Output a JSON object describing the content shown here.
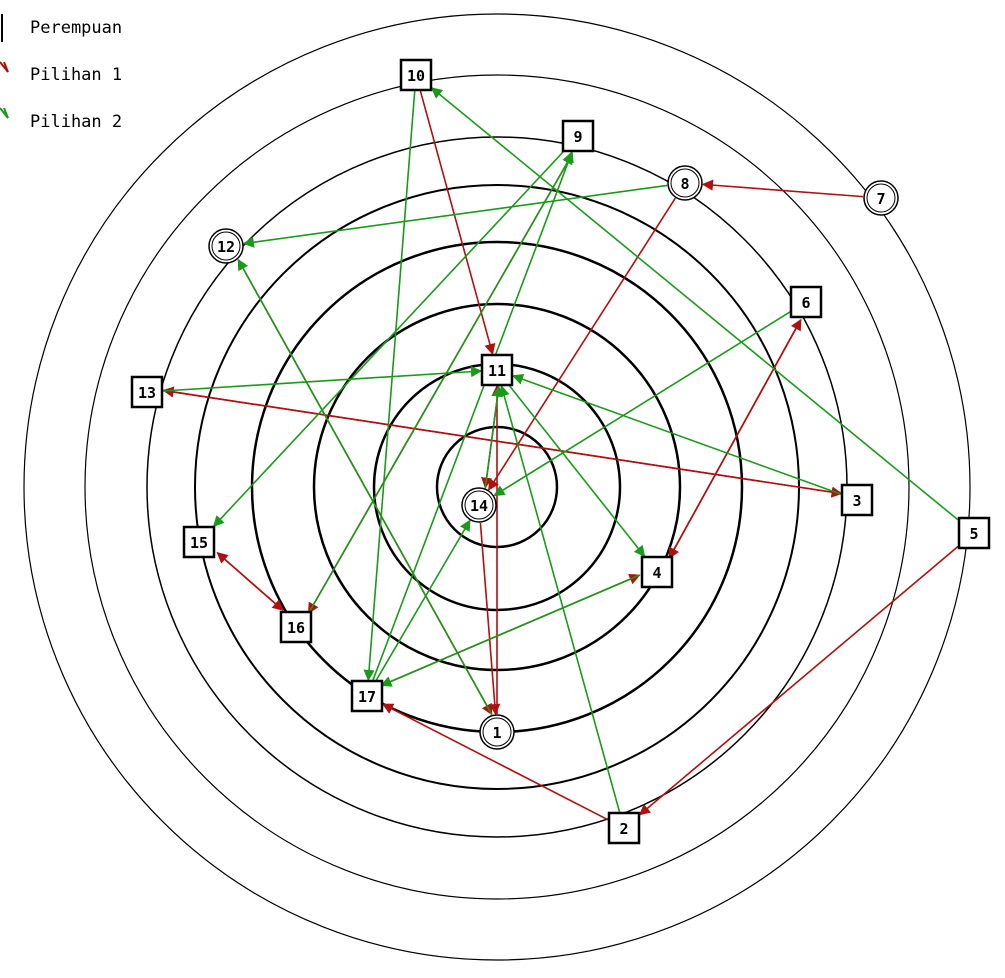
{
  "legend": {
    "female_label": "Perempuan",
    "choice1_label": "Pilihan 1",
    "choice2_label": "Pilihan 2"
  },
  "colors": {
    "ring": "#000000",
    "choice1": "#b01010",
    "choice2": "#1a9a1a",
    "node_fill": "#ffffff",
    "node_stroke": "#000000"
  },
  "nodes": [
    {
      "id": "1",
      "label": "1",
      "shape": "circle"
    },
    {
      "id": "2",
      "label": "2",
      "shape": "square"
    },
    {
      "id": "3",
      "label": "3",
      "shape": "square"
    },
    {
      "id": "4",
      "label": "4",
      "shape": "square"
    },
    {
      "id": "5",
      "label": "5",
      "shape": "square"
    },
    {
      "id": "6",
      "label": "6",
      "shape": "square"
    },
    {
      "id": "7",
      "label": "7",
      "shape": "circle"
    },
    {
      "id": "8",
      "label": "8",
      "shape": "circle"
    },
    {
      "id": "9",
      "label": "9",
      "shape": "square"
    },
    {
      "id": "10",
      "label": "10",
      "shape": "square"
    },
    {
      "id": "11",
      "label": "11",
      "shape": "square"
    },
    {
      "id": "12",
      "label": "12",
      "shape": "circle"
    },
    {
      "id": "13",
      "label": "13",
      "shape": "square"
    },
    {
      "id": "14",
      "label": "14",
      "shape": "circle"
    },
    {
      "id": "15",
      "label": "15",
      "shape": "square"
    },
    {
      "id": "16",
      "label": "16",
      "shape": "square"
    },
    {
      "id": "17",
      "label": "17",
      "shape": "square"
    }
  ],
  "edges": [
    {
      "from": "7",
      "to": "8",
      "choice": 1
    },
    {
      "from": "10",
      "to": "11",
      "choice": 1
    },
    {
      "from": "9",
      "to": "16",
      "choice": 1
    },
    {
      "from": "8",
      "to": "14",
      "choice": 1
    },
    {
      "from": "12",
      "to": "1",
      "choice": 1
    },
    {
      "from": "13",
      "to": "3",
      "choice": 1
    },
    {
      "from": "3",
      "to": "13",
      "choice": 1
    },
    {
      "from": "6",
      "to": "4",
      "choice": 1
    },
    {
      "from": "4",
      "to": "6",
      "choice": 1
    },
    {
      "from": "15",
      "to": "16",
      "choice": 1
    },
    {
      "from": "16",
      "to": "15",
      "choice": 1
    },
    {
      "from": "17",
      "to": "4",
      "choice": 1
    },
    {
      "from": "14",
      "to": "1",
      "choice": 1
    },
    {
      "from": "11",
      "to": "14",
      "choice": 1
    },
    {
      "from": "1",
      "to": "11",
      "choice": 1
    },
    {
      "from": "5",
      "to": "2",
      "choice": 1
    },
    {
      "from": "2",
      "to": "17",
      "choice": 1
    },
    {
      "from": "10",
      "to": "17",
      "choice": 2
    },
    {
      "from": "5",
      "to": "10",
      "choice": 2
    },
    {
      "from": "8",
      "to": "12",
      "choice": 2
    },
    {
      "from": "17",
      "to": "9",
      "choice": 2
    },
    {
      "from": "16",
      "to": "9",
      "choice": 2
    },
    {
      "from": "9",
      "to": "15",
      "choice": 2
    },
    {
      "from": "13",
      "to": "11",
      "choice": 2
    },
    {
      "from": "3",
      "to": "11",
      "choice": 2
    },
    {
      "from": "11",
      "to": "4",
      "choice": 2
    },
    {
      "from": "6",
      "to": "14",
      "choice": 2
    },
    {
      "from": "1",
      "to": "12",
      "choice": 2
    },
    {
      "from": "2",
      "to": "11",
      "choice": 2
    },
    {
      "from": "4",
      "to": "17",
      "choice": 2
    },
    {
      "from": "14",
      "to": "11",
      "choice": 2
    },
    {
      "from": "17",
      "to": "14",
      "choice": 2
    }
  ]
}
